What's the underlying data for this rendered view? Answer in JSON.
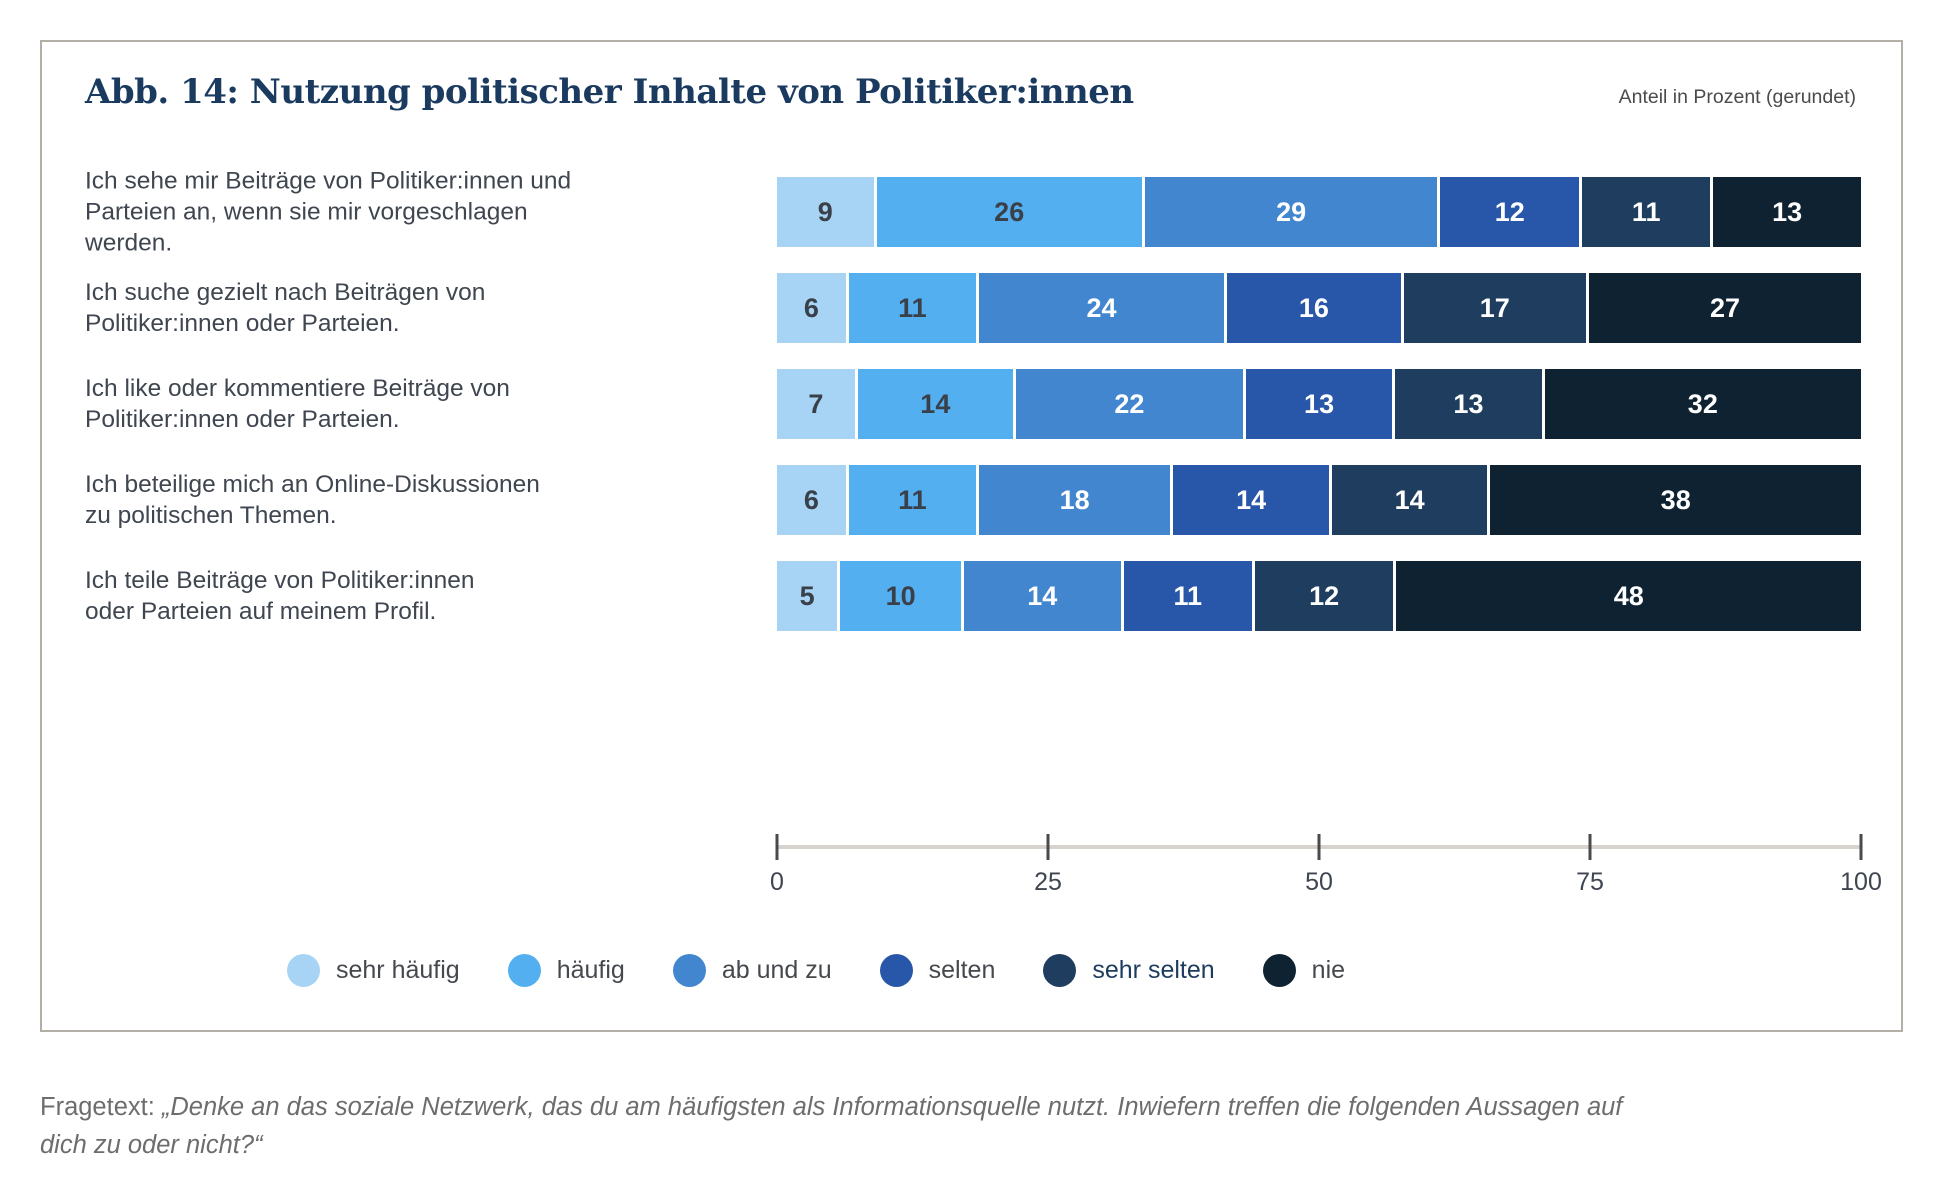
{
  "chart_data": {
    "type": "bar",
    "orientation": "horizontal",
    "stacked": true,
    "unit": "percent",
    "title": "Abb. 14: Nutzung politischer Inhalte von Politiker:innen",
    "subtitle": "Anteil in Prozent (gerundet)",
    "categories": [
      "Ich sehe mir Beiträge von Politiker:innen und\nParteien an, wenn sie mir vorgeschlagen\nwerden.",
      "Ich suche gezielt nach Beiträgen von\nPolitiker:innen oder Parteien.",
      "Ich like oder kommentiere Beiträge von\nPolitiker:innen oder Parteien.",
      "Ich beteilige mich an Online-Diskussionen\nzu politischen Themen.",
      "Ich teile Beiträge von Politiker:innen\noder Parteien auf meinem Profil."
    ],
    "series": [
      {
        "name": "sehr häufig",
        "color": "#a7d4f5",
        "text_color": "#3a4049",
        "values": [
          9,
          6,
          7,
          6,
          5
        ]
      },
      {
        "name": "häufig",
        "color": "#54aff1",
        "text_color": "#3a4049",
        "values": [
          26,
          11,
          14,
          11,
          10
        ]
      },
      {
        "name": "ab und zu",
        "color": "#4286d0",
        "text_color": "#ffffff",
        "values": [
          29,
          24,
          22,
          18,
          14
        ]
      },
      {
        "name": "selten",
        "color": "#2856a8",
        "text_color": "#ffffff",
        "values": [
          12,
          16,
          13,
          14,
          11
        ]
      },
      {
        "name": "sehr selten",
        "color": "#1e3d5f",
        "text_color": "#ffffff",
        "values": [
          11,
          17,
          13,
          14,
          12
        ],
        "legend_text_color": "#1d3c5e"
      },
      {
        "name": "nie",
        "color": "#0f2231",
        "text_color": "#ffffff",
        "values": [
          13,
          27,
          32,
          38,
          48
        ]
      }
    ],
    "xlim": [
      0,
      100
    ],
    "x_ticks": [
      0,
      25,
      50,
      75,
      100
    ],
    "grid": false,
    "legend_position": "bottom"
  },
  "footer": {
    "prefix": "Fragetext: ",
    "quote": "„Denke an das soziale Netzwerk, das du am häufigsten als Informationsquelle nutzt. Inwiefern treffen die folgenden Aussagen auf\ndich zu oder nicht?“"
  }
}
